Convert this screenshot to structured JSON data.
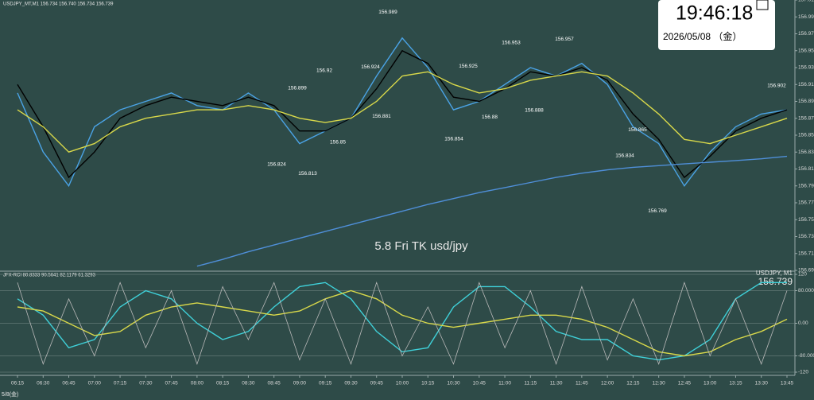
{
  "chart_data": [
    {
      "type": "line",
      "title": "USDJPY_MT,M1  156.734 156.740 156.734 156.739",
      "annotation": "5.8 Fri TK usd/jpy",
      "categories": [
        "06:15",
        "06:30",
        "06:45",
        "07:00",
        "07:15",
        "07:30",
        "07:45",
        "08:00",
        "08:15",
        "08:30",
        "08:45",
        "09:00",
        "09:15",
        "09:30",
        "09:45",
        "10:00",
        "10:15",
        "10:30",
        "10:45",
        "11:00",
        "11:15",
        "11:30",
        "11:45",
        "12:00",
        "12:15",
        "12:30",
        "12:45",
        "13:00",
        "13:15",
        "13:30",
        "13:45"
      ],
      "date_label": "5/8(金)",
      "series": [
        {
          "color": "#4aa3e6",
          "values": [
            156.9,
            156.83,
            156.79,
            156.86,
            156.88,
            156.89,
            156.9,
            156.885,
            156.88,
            156.9,
            156.88,
            156.84,
            156.855,
            156.87,
            156.92,
            156.965,
            156.93,
            156.88,
            156.89,
            156.91,
            156.93,
            156.92,
            156.935,
            156.91,
            156.86,
            156.84,
            156.79,
            156.83,
            156.86,
            156.875,
            156.88
          ]
        },
        {
          "color": "#000000",
          "values": [
            156.91,
            156.86,
            156.8,
            156.83,
            156.87,
            156.885,
            156.895,
            156.89,
            156.885,
            156.895,
            156.885,
            156.855,
            156.855,
            156.87,
            156.905,
            156.95,
            156.935,
            156.895,
            156.89,
            156.905,
            156.925,
            156.92,
            156.93,
            156.915,
            156.875,
            156.845,
            156.8,
            156.825,
            156.855,
            156.87,
            156.88
          ]
        },
        {
          "color": "#d8d84a",
          "values": [
            156.88,
            156.86,
            156.83,
            156.84,
            156.86,
            156.87,
            156.875,
            156.88,
            156.88,
            156.885,
            156.88,
            156.87,
            156.865,
            156.87,
            156.89,
            156.92,
            156.925,
            156.91,
            156.9,
            156.905,
            156.915,
            156.92,
            156.925,
            156.92,
            156.9,
            156.875,
            156.845,
            156.84,
            156.85,
            156.86,
            156.87
          ]
        },
        {
          "color": "#4f8fd9",
          "values": [
            null,
            null,
            null,
            null,
            null,
            null,
            null,
            156.695,
            156.703,
            156.712,
            156.72,
            156.728,
            156.736,
            156.744,
            156.752,
            156.76,
            156.768,
            156.775,
            156.782,
            156.788,
            156.794,
            156.8,
            156.805,
            156.809,
            156.812,
            156.814,
            156.816,
            156.818,
            156.82,
            156.822,
            156.825
          ]
        }
      ],
      "annotations": [
        156.989,
        156.953,
        156.957,
        156.92,
        156.924,
        156.925,
        156.899,
        156.902,
        156.881,
        156.88,
        156.888,
        156.865,
        156.85,
        156.854,
        156.834,
        156.824,
        156.813,
        156.769
      ],
      "ylim": [
        156.69,
        157.01
      ],
      "yticks": [
        {
          "value": 156.69,
          "label": "156.690"
        },
        {
          "value": 156.71,
          "label": "156.710"
        },
        {
          "value": 156.73,
          "label": "156.730"
        },
        {
          "value": 156.75,
          "label": "156.750"
        },
        {
          "value": 156.77,
          "label": "156.770"
        },
        {
          "value": 156.79,
          "label": "156.790"
        },
        {
          "value": 156.81,
          "label": "156.810"
        },
        {
          "value": 156.83,
          "label": "156.830"
        },
        {
          "value": 156.85,
          "label": "156.850"
        },
        {
          "value": 156.87,
          "label": "156.870"
        },
        {
          "value": 156.89,
          "label": "156.890"
        },
        {
          "value": 156.91,
          "label": "156.910"
        },
        {
          "value": 156.93,
          "label": "156.930"
        },
        {
          "value": 156.95,
          "label": "156.950"
        },
        {
          "value": 156.97,
          "label": "156.970"
        },
        {
          "value": 156.99,
          "label": "156.990"
        },
        {
          "value": 157.01,
          "label": "157.010"
        }
      ]
    },
    {
      "type": "line",
      "title": "JFX-RCI 80.8333 90.5641 82.1179 61.3293",
      "symbol": "USDJPY, M1",
      "price": "156.739",
      "series": [
        {
          "color": "#3fd0d8",
          "values": [
            60,
            20,
            -60,
            -40,
            40,
            80,
            60,
            0,
            -40,
            -20,
            40,
            90,
            100,
            60,
            -20,
            -70,
            -60,
            40,
            90,
            90,
            40,
            -20,
            -40,
            -40,
            -80,
            -90,
            -80,
            -40,
            60,
            100,
            100
          ]
        },
        {
          "color": "#d8d84a",
          "values": [
            40,
            30,
            0,
            -30,
            -20,
            20,
            40,
            50,
            40,
            30,
            20,
            30,
            60,
            80,
            60,
            20,
            0,
            -10,
            0,
            10,
            20,
            20,
            10,
            -10,
            -40,
            -70,
            -80,
            -70,
            -40,
            -20,
            10
          ]
        },
        {
          "color": "#b8b8b8",
          "values": [
            100,
            -100,
            60,
            -80,
            100,
            -60,
            80,
            -100,
            90,
            -40,
            100,
            -90,
            60,
            -100,
            100,
            -80,
            40,
            -100,
            100,
            -60,
            80,
            -100,
            90,
            -90,
            60,
            -100,
            100,
            -80,
            60,
            -100,
            80
          ]
        }
      ],
      "ylim": [
        -120,
        120
      ],
      "yticks": [
        -120,
        {
          "value": -80,
          "label": "-80.0000"
        },
        {
          "value": 0,
          "label": "0.00"
        },
        {
          "value": 80,
          "label": "80.0000"
        },
        120
      ]
    }
  ],
  "clock": {
    "time": "19:46:18",
    "date": "2026/05/08 （金）"
  }
}
